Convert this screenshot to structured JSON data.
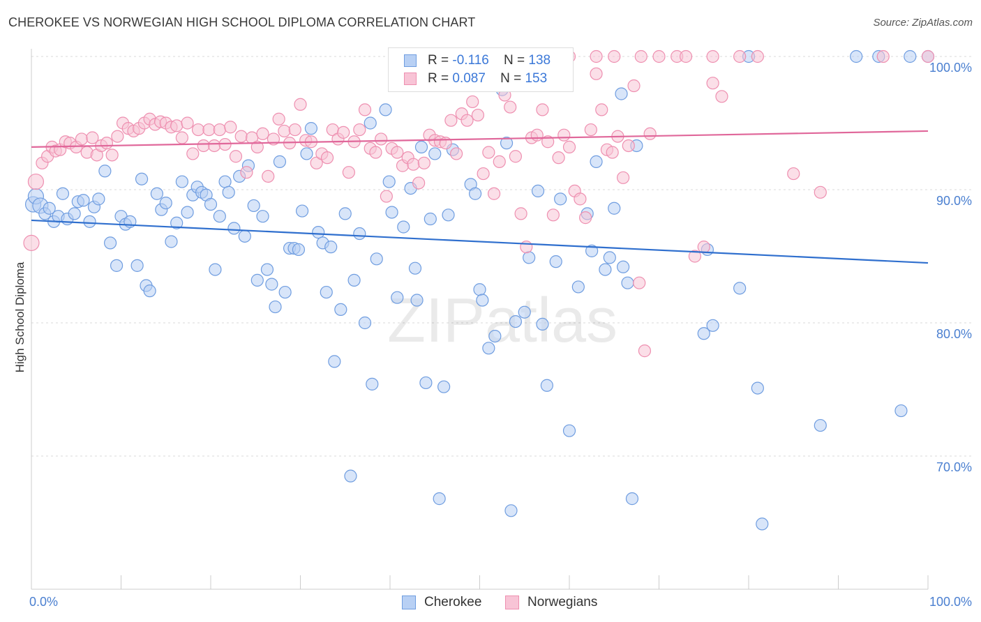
{
  "title": "CHEROKEE VS NORWEGIAN HIGH SCHOOL DIPLOMA CORRELATION CHART",
  "source": "Source: ZipAtlas.com",
  "watermark": "ZIPatlas",
  "legend": [
    {
      "r_label": "R =",
      "r_value": "-0.116",
      "n_label": "N =",
      "n_value": "138"
    },
    {
      "r_label": "R =",
      "r_value": "0.087",
      "n_label": "N =",
      "n_value": "153"
    }
  ],
  "chart_data": {
    "type": "scatter",
    "ylabel": "High School Diploma",
    "xlim": [
      0,
      100
    ],
    "ylim": [
      61,
      101.5
    ],
    "x_tick_labels": [
      "0.0%",
      "100.0%"
    ],
    "y_ticks": [
      70,
      80,
      90,
      100
    ],
    "y_tick_labels": [
      "70.0%",
      "80.0%",
      "90.0%",
      "100.0%"
    ],
    "grid": "horizontal dashed",
    "legend_position": "bottom-center",
    "series": [
      {
        "name": "Cherokee",
        "color": "#6f9de0",
        "fill": "#b8d0f4",
        "trend": {
          "x": [
            0,
            100
          ],
          "y": [
            87.7,
            84.5
          ]
        },
        "points": [
          [
            0.2,
            88.9
          ],
          [
            0.5,
            89.5
          ],
          [
            1,
            88.8
          ],
          [
            1.5,
            88.2
          ],
          [
            2,
            88.6
          ],
          [
            2.5,
            87.6
          ],
          [
            3,
            88.0
          ],
          [
            3.5,
            89.7
          ],
          [
            4,
            87.8
          ],
          [
            4.8,
            88.2
          ],
          [
            5.2,
            89.1
          ],
          [
            5.8,
            89.2
          ],
          [
            6.5,
            87.6
          ],
          [
            7,
            88.7
          ],
          [
            7.5,
            89.3
          ],
          [
            8.2,
            91.4
          ],
          [
            8.8,
            86.0
          ],
          [
            9.5,
            84.3
          ],
          [
            10,
            88.0
          ],
          [
            10.5,
            87.4
          ],
          [
            11,
            87.6
          ],
          [
            11.8,
            84.3
          ],
          [
            12.3,
            90.8
          ],
          [
            12.8,
            82.8
          ],
          [
            13.2,
            82.4
          ],
          [
            14,
            89.7
          ],
          [
            14.5,
            88.5
          ],
          [
            15,
            89.0
          ],
          [
            15.6,
            86.1
          ],
          [
            16.2,
            87.5
          ],
          [
            16.8,
            90.6
          ],
          [
            17.4,
            88.3
          ],
          [
            18,
            89.6
          ],
          [
            18.5,
            90.2
          ],
          [
            19,
            89.8
          ],
          [
            19.5,
            89.6
          ],
          [
            20,
            88.9
          ],
          [
            20.5,
            84.0
          ],
          [
            21,
            88.0
          ],
          [
            21.6,
            90.6
          ],
          [
            22,
            89.8
          ],
          [
            22.6,
            87.1
          ],
          [
            23.2,
            91.0
          ],
          [
            23.8,
            86.5
          ],
          [
            24.2,
            91.8
          ],
          [
            24.8,
            88.8
          ],
          [
            25.2,
            83.2
          ],
          [
            25.8,
            88.0
          ],
          [
            26.3,
            84.0
          ],
          [
            26.8,
            82.9
          ],
          [
            27.2,
            81.2
          ],
          [
            27.7,
            92.1
          ],
          [
            28.3,
            82.3
          ],
          [
            28.8,
            85.6
          ],
          [
            29.3,
            85.6
          ],
          [
            29.8,
            85.5
          ],
          [
            30.2,
            88.4
          ],
          [
            30.7,
            92.7
          ],
          [
            31.2,
            94.6
          ],
          [
            32,
            86.8
          ],
          [
            32.5,
            86.0
          ],
          [
            32.9,
            82.3
          ],
          [
            33.4,
            85.7
          ],
          [
            33.8,
            77.1
          ],
          [
            34.5,
            81.0
          ],
          [
            35,
            88.2
          ],
          [
            35.6,
            68.5
          ],
          [
            36,
            83.2
          ],
          [
            36.6,
            86.7
          ],
          [
            37.2,
            80.0
          ],
          [
            37.8,
            95.0
          ],
          [
            38,
            75.4
          ],
          [
            38.5,
            84.8
          ],
          [
            39.5,
            96.0
          ],
          [
            39.9,
            90.6
          ],
          [
            40.2,
            88.3
          ],
          [
            40.8,
            81.9
          ],
          [
            41.5,
            87.2
          ],
          [
            42.3,
            90.1
          ],
          [
            42.8,
            84.1
          ],
          [
            43,
            81.7
          ],
          [
            43.5,
            93.2
          ],
          [
            44,
            75.5
          ],
          [
            44.5,
            87.8
          ],
          [
            45,
            92.7
          ],
          [
            45.5,
            66.8
          ],
          [
            46,
            75.2
          ],
          [
            46.5,
            88.1
          ],
          [
            47,
            93.0
          ],
          [
            48,
            100.0
          ],
          [
            49,
            90.4
          ],
          [
            49.5,
            89.7
          ],
          [
            50,
            82.5
          ],
          [
            50.3,
            81.7
          ],
          [
            51,
            78.1
          ],
          [
            51.7,
            79.0
          ],
          [
            52.5,
            97.5
          ],
          [
            53,
            93.5
          ],
          [
            53.5,
            65.9
          ],
          [
            54,
            80.1
          ],
          [
            55,
            80.8
          ],
          [
            55.5,
            84.9
          ],
          [
            56.5,
            89.9
          ],
          [
            57,
            79.9
          ],
          [
            57.5,
            75.3
          ],
          [
            58.5,
            84.6
          ],
          [
            59,
            89.3
          ],
          [
            60,
            71.9
          ],
          [
            61,
            82.7
          ],
          [
            62,
            88.2
          ],
          [
            62.5,
            85.4
          ],
          [
            63,
            92.1
          ],
          [
            64,
            84.0
          ],
          [
            64.5,
            84.9
          ],
          [
            65,
            88.6
          ],
          [
            65.8,
            97.2
          ],
          [
            66,
            84.2
          ],
          [
            66.5,
            83.0
          ],
          [
            67,
            66.8
          ],
          [
            67.5,
            93.3
          ],
          [
            75,
            79.2
          ],
          [
            75.4,
            85.5
          ],
          [
            76,
            79.8
          ],
          [
            79,
            82.6
          ],
          [
            80,
            100.0
          ],
          [
            81,
            75.1
          ],
          [
            81.5,
            64.9
          ],
          [
            88,
            72.3
          ],
          [
            92,
            100.0
          ],
          [
            94.5,
            100.0
          ],
          [
            97,
            73.4
          ],
          [
            98,
            100.0
          ],
          [
            100,
            100.0
          ]
        ]
      },
      {
        "name": "Norwegians",
        "color": "#ee8fb0",
        "fill": "#f8c4d6",
        "trend": {
          "x": [
            0,
            100
          ],
          "y": [
            93.2,
            94.4
          ]
        },
        "points": [
          [
            0,
            86.0
          ],
          [
            0.5,
            90.6
          ],
          [
            1.2,
            92.0
          ],
          [
            1.8,
            92.5
          ],
          [
            2.3,
            93.2
          ],
          [
            2.7,
            92.9
          ],
          [
            3.2,
            93.0
          ],
          [
            3.8,
            93.6
          ],
          [
            4.3,
            93.5
          ],
          [
            5,
            93.2
          ],
          [
            5.6,
            93.8
          ],
          [
            6.2,
            92.8
          ],
          [
            6.8,
            93.9
          ],
          [
            7.3,
            92.6
          ],
          [
            7.8,
            93.3
          ],
          [
            8.4,
            93.5
          ],
          [
            9,
            92.6
          ],
          [
            9.6,
            94.0
          ],
          [
            10.2,
            95.0
          ],
          [
            10.8,
            94.6
          ],
          [
            11.4,
            94.4
          ],
          [
            12,
            94.6
          ],
          [
            12.6,
            95.0
          ],
          [
            13.2,
            95.3
          ],
          [
            13.8,
            94.9
          ],
          [
            14.4,
            95.1
          ],
          [
            15,
            95.0
          ],
          [
            15.6,
            94.7
          ],
          [
            16.2,
            94.8
          ],
          [
            16.8,
            93.9
          ],
          [
            17.4,
            95.0
          ],
          [
            18,
            92.7
          ],
          [
            18.6,
            94.5
          ],
          [
            19.2,
            93.3
          ],
          [
            19.8,
            94.5
          ],
          [
            20.4,
            93.3
          ],
          [
            21,
            94.5
          ],
          [
            21.6,
            93.4
          ],
          [
            22.2,
            94.7
          ],
          [
            22.8,
            92.5
          ],
          [
            23.4,
            94.0
          ],
          [
            24,
            91.3
          ],
          [
            24.6,
            93.9
          ],
          [
            25.2,
            93.2
          ],
          [
            25.8,
            94.2
          ],
          [
            26.4,
            91.0
          ],
          [
            27,
            93.8
          ],
          [
            27.6,
            95.3
          ],
          [
            28.2,
            94.4
          ],
          [
            28.8,
            93.5
          ],
          [
            29.4,
            94.5
          ],
          [
            30,
            96.4
          ],
          [
            30.6,
            93.7
          ],
          [
            31.2,
            93.6
          ],
          [
            31.8,
            92.0
          ],
          [
            32.4,
            92.7
          ],
          [
            33,
            92.4
          ],
          [
            33.6,
            94.5
          ],
          [
            34.2,
            93.8
          ],
          [
            34.8,
            94.3
          ],
          [
            35.4,
            91.3
          ],
          [
            36,
            93.6
          ],
          [
            36.6,
            94.5
          ],
          [
            37.2,
            96.0
          ],
          [
            37.8,
            93.1
          ],
          [
            38.4,
            92.8
          ],
          [
            39,
            93.8
          ],
          [
            39.6,
            89.5
          ],
          [
            40.2,
            93.1
          ],
          [
            40.8,
            92.8
          ],
          [
            41.4,
            91.8
          ],
          [
            42,
            92.4
          ],
          [
            42.6,
            91.9
          ],
          [
            43.2,
            90.5
          ],
          [
            43.8,
            92.0
          ],
          [
            44.4,
            94.1
          ],
          [
            45,
            93.7
          ],
          [
            45.6,
            93.6
          ],
          [
            46.2,
            93.5
          ],
          [
            46.8,
            95.2
          ],
          [
            47.4,
            92.7
          ],
          [
            48,
            95.7
          ],
          [
            48.6,
            95.2
          ],
          [
            49.2,
            96.6
          ],
          [
            49.8,
            95.6
          ],
          [
            50.4,
            91.2
          ],
          [
            51,
            92.8
          ],
          [
            51.6,
            89.7
          ],
          [
            52.2,
            92.1
          ],
          [
            52.8,
            97.1
          ],
          [
            53.4,
            96.2
          ],
          [
            54,
            92.5
          ],
          [
            54.6,
            88.2
          ],
          [
            55.2,
            85.7
          ],
          [
            55.8,
            93.9
          ],
          [
            56.4,
            94.1
          ],
          [
            57,
            96.0
          ],
          [
            57.6,
            93.6
          ],
          [
            58.2,
            88.1
          ],
          [
            58.8,
            92.4
          ],
          [
            59.4,
            94.1
          ],
          [
            60,
            93.2
          ],
          [
            60.6,
            89.9
          ],
          [
            61.2,
            89.3
          ],
          [
            61.8,
            87.9
          ],
          [
            62.4,
            94.5
          ],
          [
            63,
            98.7
          ],
          [
            63.6,
            96.0
          ],
          [
            64.2,
            93.0
          ],
          [
            64.8,
            92.8
          ],
          [
            65.4,
            94.0
          ],
          [
            66,
            90.9
          ],
          [
            66.6,
            93.3
          ],
          [
            67.2,
            97.8
          ],
          [
            67.8,
            83.0
          ],
          [
            68.4,
            77.9
          ],
          [
            69,
            94.2
          ],
          [
            72,
            100.0
          ],
          [
            74,
            85.0
          ],
          [
            75,
            85.7
          ],
          [
            76,
            98.0
          ],
          [
            77,
            97.0
          ],
          [
            79,
            100.0
          ],
          [
            85,
            91.2
          ],
          [
            88,
            89.8
          ],
          [
            95,
            100.0
          ],
          [
            100,
            100.0
          ],
          [
            48,
            100.0
          ],
          [
            52,
            100.0
          ],
          [
            56,
            100.0
          ],
          [
            60,
            100.0
          ],
          [
            63,
            100.0
          ],
          [
            65,
            100.0
          ],
          [
            68,
            100.0
          ],
          [
            70,
            100.0
          ],
          [
            73,
            100.0
          ],
          [
            76,
            100.0
          ],
          [
            81,
            100.0
          ]
        ]
      }
    ]
  }
}
